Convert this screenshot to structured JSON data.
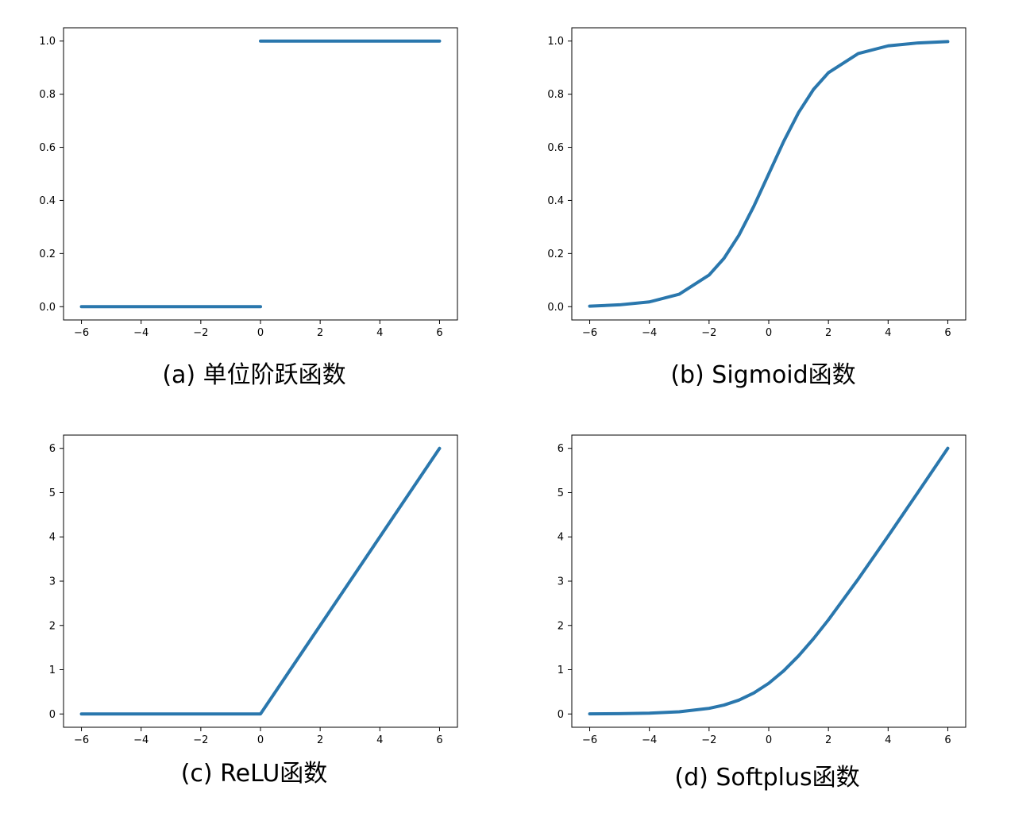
{
  "style": {
    "line_color": "#2a77ad"
  },
  "chart_data": [
    {
      "type": "line",
      "caption": "(a) 单位阶跃函数",
      "xlim": [
        -6.6,
        6.6
      ],
      "ylim": [
        -0.05,
        1.05
      ],
      "xticks": [
        -6,
        -4,
        -2,
        0,
        2,
        4,
        6
      ],
      "xtick_labels": [
        "−6",
        "−4",
        "−2",
        "0",
        "2",
        "4",
        "6"
      ],
      "yticks": [
        0,
        0.2,
        0.4,
        0.6,
        0.8,
        1.0
      ],
      "ytick_labels": [
        "0.0",
        "0.2",
        "0.4",
        "0.6",
        "0.8",
        "1.0"
      ],
      "grid": false,
      "series": [
        {
          "x": [
            -6,
            0
          ],
          "y": [
            0,
            0
          ]
        },
        {
          "x": [
            0,
            6
          ],
          "y": [
            1,
            1
          ]
        }
      ]
    },
    {
      "type": "line",
      "caption": "(b) Sigmoid函数",
      "xlim": [
        -6.6,
        6.6
      ],
      "ylim": [
        -0.05,
        1.05
      ],
      "xticks": [
        -6,
        -4,
        -2,
        0,
        2,
        4,
        6
      ],
      "xtick_labels": [
        "−6",
        "−4",
        "−2",
        "0",
        "2",
        "4",
        "6"
      ],
      "yticks": [
        0,
        0.2,
        0.4,
        0.6,
        0.8,
        1.0
      ],
      "ytick_labels": [
        "0.0",
        "0.2",
        "0.4",
        "0.6",
        "0.8",
        "1.0"
      ],
      "grid": false,
      "series": [
        {
          "x": [
            -6,
            -5,
            -4,
            -3,
            -2,
            -1.5,
            -1,
            -0.5,
            0,
            0.5,
            1,
            1.5,
            2,
            3,
            4,
            5,
            6
          ],
          "y": [
            0.002,
            0.007,
            0.018,
            0.047,
            0.119,
            0.182,
            0.269,
            0.378,
            0.5,
            0.622,
            0.731,
            0.818,
            0.881,
            0.953,
            0.982,
            0.993,
            0.998
          ]
        }
      ]
    },
    {
      "type": "line",
      "caption": "(c) ReLU函数",
      "xlim": [
        -6.6,
        6.6
      ],
      "ylim": [
        -0.3,
        6.3
      ],
      "xticks": [
        -6,
        -4,
        -2,
        0,
        2,
        4,
        6
      ],
      "xtick_labels": [
        "−6",
        "−4",
        "−2",
        "0",
        "2",
        "4",
        "6"
      ],
      "yticks": [
        0,
        1,
        2,
        3,
        4,
        5,
        6
      ],
      "ytick_labels": [
        "0",
        "1",
        "2",
        "3",
        "4",
        "5",
        "6"
      ],
      "grid": false,
      "series": [
        {
          "x": [
            -6,
            0,
            6
          ],
          "y": [
            0,
            0,
            6
          ]
        }
      ]
    },
    {
      "type": "line",
      "caption": "(d) Softplus函数",
      "xlim": [
        -6.6,
        6.6
      ],
      "ylim": [
        -0.3,
        6.3
      ],
      "xticks": [
        -6,
        -4,
        -2,
        0,
        2,
        4,
        6
      ],
      "xtick_labels": [
        "−6",
        "−4",
        "−2",
        "0",
        "2",
        "4",
        "6"
      ],
      "yticks": [
        0,
        1,
        2,
        3,
        4,
        5,
        6
      ],
      "ytick_labels": [
        "0",
        "1",
        "2",
        "3",
        "4",
        "5",
        "6"
      ],
      "grid": false,
      "series": [
        {
          "x": [
            -6,
            -5,
            -4,
            -3,
            -2,
            -1.5,
            -1,
            -0.5,
            0,
            0.5,
            1,
            1.5,
            2,
            3,
            4,
            5,
            6
          ],
          "y": [
            0.002,
            0.007,
            0.018,
            0.049,
            0.127,
            0.201,
            0.313,
            0.474,
            0.693,
            0.974,
            1.313,
            1.701,
            2.127,
            3.049,
            4.018,
            5.007,
            6.002
          ]
        }
      ]
    }
  ]
}
